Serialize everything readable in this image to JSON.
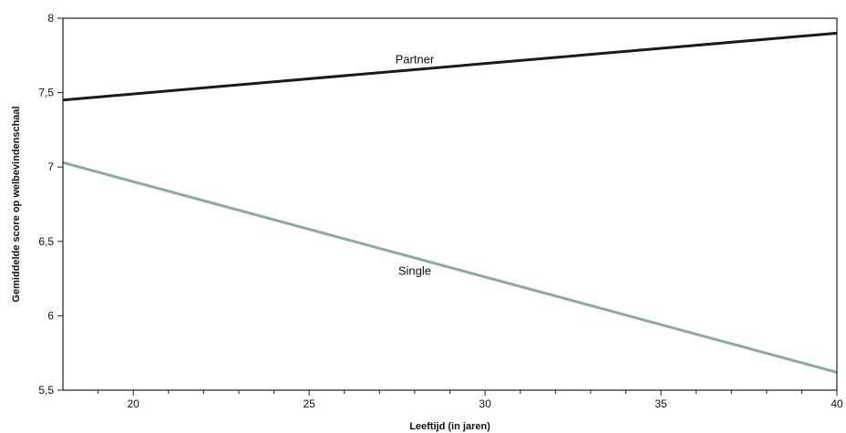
{
  "chart_data": {
    "type": "line",
    "title": "",
    "xlabel": "Leeftijd (in jaren)",
    "ylabel": "Gemiddelde score op welbevindenschaal",
    "xlim": [
      18,
      40
    ],
    "ylim": [
      5.5,
      8
    ],
    "x_ticks": [
      20,
      25,
      30,
      35,
      40
    ],
    "x_minor_step": 1,
    "y_ticks": [
      5.5,
      6,
      6.5,
      7,
      7.5,
      8
    ],
    "y_tick_labels": [
      "5,5",
      "6",
      "6,5",
      "7",
      "7,5",
      "8"
    ],
    "grid": false,
    "legend": "none (series labelled directly on chart)",
    "series": [
      {
        "name": "Partner",
        "x": [
          18,
          40
        ],
        "values": [
          7.45,
          7.9
        ],
        "color": "#1a1a1a",
        "label_at": [
          28,
          7.72
        ]
      },
      {
        "name": "Single",
        "x": [
          18,
          40
        ],
        "values": [
          7.03,
          5.62
        ],
        "color": "#8aaba2",
        "label_at": [
          28,
          6.3
        ]
      }
    ]
  }
}
